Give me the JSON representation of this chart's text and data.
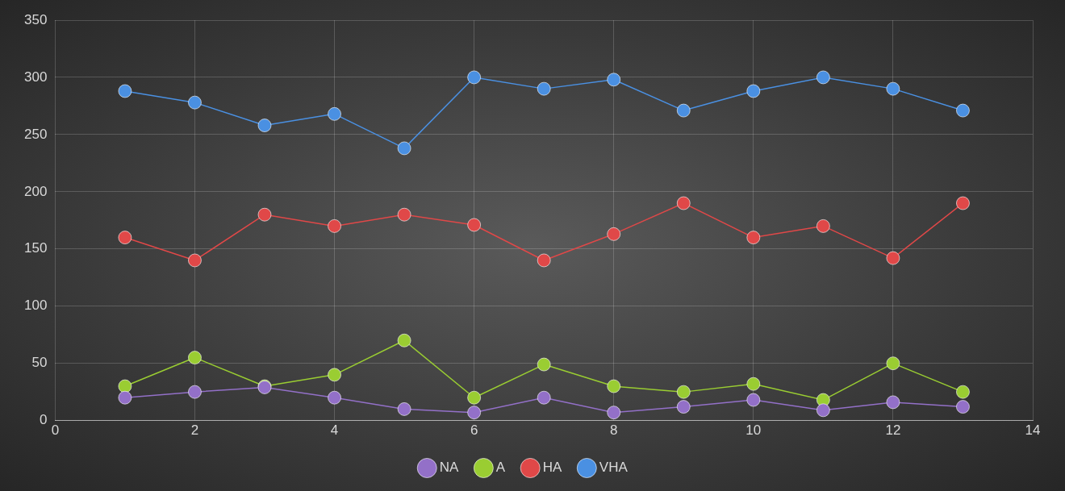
{
  "chart_data": {
    "type": "line",
    "x": [
      1,
      2,
      3,
      4,
      5,
      6,
      7,
      8,
      9,
      10,
      11,
      12,
      13
    ],
    "series": [
      {
        "name": "VHA",
        "color": "#4a90e2",
        "values": [
          288,
          278,
          258,
          268,
          238,
          300,
          290,
          298,
          271,
          288,
          300,
          290,
          271
        ]
      },
      {
        "name": "HA",
        "color": "#e04848",
        "values": [
          160,
          140,
          180,
          170,
          180,
          171,
          140,
          163,
          190,
          160,
          170,
          142,
          190
        ]
      },
      {
        "name": "A",
        "color": "#9acd32",
        "values": [
          30,
          55,
          30,
          40,
          70,
          20,
          49,
          30,
          25,
          32,
          18,
          50,
          25
        ]
      },
      {
        "name": "NA",
        "color": "#9370c8",
        "values": [
          20,
          25,
          29,
          20,
          10,
          7,
          20,
          7,
          12,
          18,
          9,
          16,
          12
        ]
      }
    ],
    "xlim": [
      0,
      14
    ],
    "xticks": [
      0,
      2,
      4,
      6,
      8,
      10,
      12,
      14
    ],
    "ylim": [
      0,
      350
    ],
    "yticks": [
      0,
      50,
      100,
      150,
      200,
      250,
      300,
      350
    ],
    "grid": true,
    "legend": "bottom",
    "marker": "circle",
    "line_style": "solid"
  }
}
